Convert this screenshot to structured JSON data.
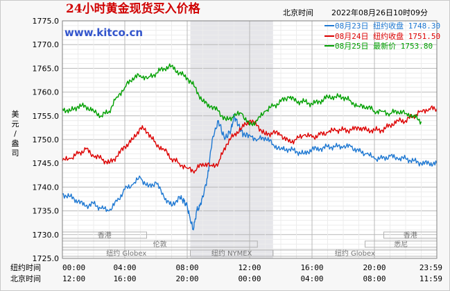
{
  "header": {
    "title": "24小时黄金现货买入价格",
    "tz_label": "北京时间",
    "datetime": "2022年08月26日10时09分",
    "brand": "www.kitco.cn"
  },
  "legend": [
    {
      "label": "08月23日  纽约收盘 1748.30",
      "color": "#1e78d2"
    },
    {
      "label": "08月24日  纽约收盘 1751.50",
      "color": "#dd0000"
    },
    {
      "label": "08月25日    最新价 1753.80",
      "color": "#00a000"
    }
  ],
  "sessions": {
    "row1": [
      {
        "name": "香港",
        "start": 0,
        "end": 5.4
      },
      {
        "name": "香港",
        "start": 20.6,
        "end": 24
      }
    ],
    "row2": [
      {
        "name": "伦敦",
        "start": 0,
        "end": 12.5
      },
      {
        "name": "悉尼",
        "start": 19.4,
        "end": 24
      }
    ],
    "row3": [
      {
        "name": "纽约 Globex",
        "start": 0,
        "end": 8.2
      },
      {
        "name": "纽约 NYMEX",
        "start": 8.2,
        "end": 13.5
      },
      {
        "name": "纽约 Globex",
        "start": 13.5,
        "end": 24
      }
    ]
  },
  "x_rows": [
    {
      "label": "纽约时间",
      "ticks": [
        "00:00",
        "04:00",
        "08:00",
        "12:00",
        "16:00",
        "20:00",
        "23:59"
      ]
    },
    {
      "label": "北京时间",
      "ticks": [
        "12:00",
        "16:00",
        "20:00",
        "00:00",
        "04:00",
        "08:00",
        "11:59"
      ]
    }
  ],
  "y_axis_label": "美元/盎司",
  "chart_data": {
    "type": "line",
    "ylim": [
      1725,
      1775
    ],
    "xlim": [
      0,
      24
    ],
    "yticks": [
      1725,
      1730,
      1735,
      1740,
      1745,
      1750,
      1755,
      1760,
      1765,
      1770,
      1775
    ],
    "ytick_labels": [
      "1725.0",
      "1730.0",
      "1735.0",
      "1740.0",
      "1745.0",
      "1750.0",
      "1755.0",
      "1760.0",
      "1765.0",
      "1770.0",
      "1775.0"
    ],
    "highlight_x": [
      8.2,
      13.5
    ],
    "grid": true,
    "series": [
      {
        "name": "08月23日",
        "color": "#1e78d2",
        "x": [
          0,
          0.5,
          1,
          1.5,
          2,
          2.5,
          3,
          3.5,
          4,
          4.5,
          5,
          5.5,
          6,
          6.5,
          7,
          7.5,
          7.8,
          8,
          8.2,
          8.4,
          8.6,
          8.8,
          9,
          9.3,
          9.6,
          10,
          10.4,
          10.8,
          11,
          11.3,
          11.6,
          12,
          12.5,
          13,
          13.5,
          14,
          14.5,
          15,
          15.5,
          16,
          16.5,
          17,
          17.5,
          18,
          18.5,
          19,
          19.5,
          20,
          20.5,
          21,
          21.5,
          22,
          22.5,
          23,
          23.5,
          24
        ],
        "y": [
          1738.5,
          1738,
          1737,
          1736,
          1736.5,
          1735.5,
          1735,
          1737,
          1739.5,
          1740.5,
          1742,
          1740,
          1741,
          1738,
          1736,
          1738,
          1737,
          1736,
          1733,
          1731,
          1735,
          1736,
          1738,
          1742,
          1750,
          1754,
          1750,
          1752,
          1755,
          1753,
          1751,
          1751,
          1750,
          1750.5,
          1749,
          1748,
          1748,
          1747.5,
          1747,
          1748,
          1748,
          1748.5,
          1748.5,
          1748.5,
          1748.5,
          1747.5,
          1747,
          1746,
          1746,
          1746.5,
          1746,
          1746,
          1745.5,
          1745,
          1745,
          1745
        ]
      },
      {
        "name": "08月24日",
        "color": "#dd0000",
        "x": [
          0,
          0.5,
          1,
          1.5,
          2,
          2.5,
          3,
          3.5,
          4,
          4.5,
          5,
          5.5,
          6,
          6.5,
          7,
          7.5,
          8,
          8.5,
          9,
          9.5,
          10,
          10.5,
          11,
          11.5,
          12,
          12.5,
          13,
          13.5,
          14,
          14.5,
          15,
          15.5,
          16,
          16.5,
          17,
          17.5,
          18,
          18.5,
          19,
          19.5,
          20,
          20.5,
          21,
          21.5,
          22,
          22.5,
          23,
          23.5,
          24
        ],
        "y": [
          1745.5,
          1746,
          1747,
          1748,
          1746.5,
          1746,
          1745,
          1746.5,
          1748.5,
          1750,
          1752.5,
          1751.5,
          1749,
          1748,
          1746,
          1745,
          1744,
          1743.5,
          1745,
          1744.5,
          1745,
          1749,
          1751,
          1752.5,
          1754,
          1753,
          1751,
          1751.5,
          1751,
          1749.5,
          1750,
          1751,
          1750.5,
          1751,
          1751.5,
          1752,
          1752,
          1752,
          1752.5,
          1752,
          1752,
          1752,
          1753,
          1754,
          1754,
          1755,
          1756,
          1756.5,
          1756.5
        ]
      },
      {
        "name": "08月25日",
        "color": "#00a000",
        "x": [
          0,
          0.5,
          1,
          1.5,
          2,
          2.5,
          3,
          3.5,
          4,
          4.5,
          5,
          5.5,
          6,
          6.5,
          7,
          7.5,
          8,
          8.5,
          9,
          9.5,
          10,
          10.5,
          11,
          11.5,
          12,
          12.5,
          13,
          13.5,
          14,
          14.5,
          15,
          15.5,
          16,
          16.5,
          17,
          17.5,
          18,
          18.5,
          19,
          19.5,
          20,
          20.5,
          21,
          21.5,
          22,
          22.5,
          23
        ],
        "y": [
          1756.5,
          1756,
          1757,
          1757,
          1756,
          1755,
          1756,
          1759,
          1761,
          1763,
          1763.5,
          1763,
          1764,
          1765,
          1765.5,
          1764,
          1763,
          1761,
          1758,
          1757,
          1756,
          1754,
          1755,
          1755.5,
          1753,
          1754,
          1756,
          1757,
          1758,
          1759,
          1758,
          1758,
          1757.5,
          1758,
          1759,
          1759,
          1759,
          1758,
          1757,
          1757,
          1756,
          1756,
          1755.5,
          1756,
          1755.5,
          1755,
          1753.8
        ]
      }
    ]
  }
}
